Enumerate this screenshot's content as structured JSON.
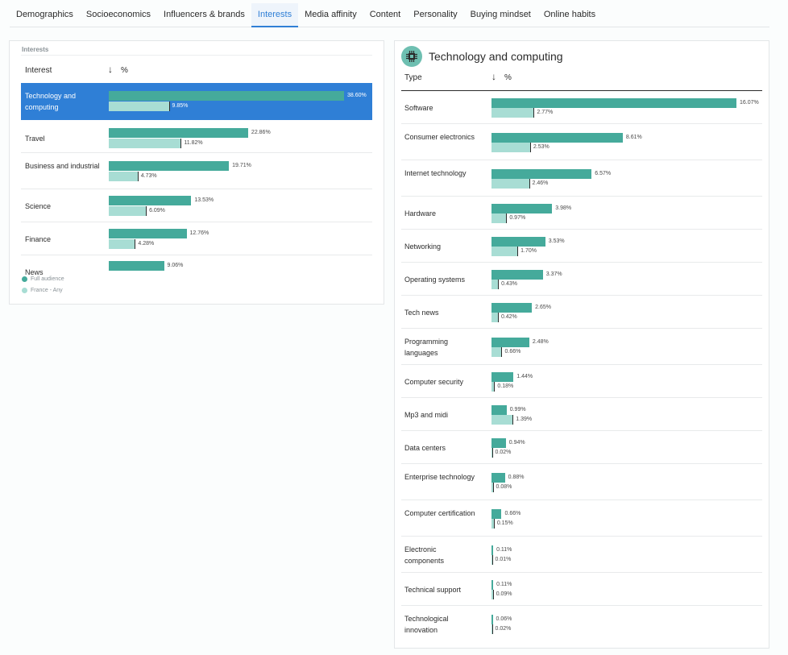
{
  "tabs": [
    {
      "label": "Demographics"
    },
    {
      "label": "Socioeconomics"
    },
    {
      "label": "Influencers & brands"
    },
    {
      "label": "Interests",
      "active": true
    },
    {
      "label": "Media affinity"
    },
    {
      "label": "Content"
    },
    {
      "label": "Personality"
    },
    {
      "label": "Buying mindset"
    },
    {
      "label": "Online habits"
    }
  ],
  "left": {
    "caption": "Interests",
    "col_label": "Interest",
    "col_pct": "%",
    "rows": [
      {
        "label": "Technology and computing",
        "a": 38.6,
        "a_text": "38.60%",
        "b": 9.85,
        "b_text": "9.85%",
        "selected": true
      },
      {
        "label": "Travel",
        "a": 22.86,
        "a_text": "22.86%",
        "b": 11.82,
        "b_text": "11.82%"
      },
      {
        "label": "Business and industrial",
        "a": 19.71,
        "a_text": "19.71%",
        "b": 4.73,
        "b_text": "4.73%"
      },
      {
        "label": "Science",
        "a": 13.53,
        "a_text": "13.53%",
        "b": 6.09,
        "b_text": "6.09%"
      },
      {
        "label": "Finance",
        "a": 12.76,
        "a_text": "12.76%",
        "b": 4.28,
        "b_text": "4.28%"
      },
      {
        "label": "News",
        "a": 9.06,
        "a_text": "9.06%"
      }
    ],
    "legend": [
      {
        "label": "Full audience",
        "color": "#45aa9b"
      },
      {
        "label": "France - Any",
        "color": "#a8ddd4"
      }
    ]
  },
  "right": {
    "title": "Technology and computing",
    "icon": "circuit-chip-icon",
    "col_label": "Type",
    "col_pct": "%",
    "rows": [
      {
        "label": "Software",
        "a": 16.07,
        "a_text": "16.07%",
        "b": 2.77,
        "b_text": "2.77%"
      },
      {
        "label": "Consumer electronics",
        "a": 8.61,
        "a_text": "8.61%",
        "b": 2.53,
        "b_text": "2.53%"
      },
      {
        "label": "Internet technology",
        "a": 6.57,
        "a_text": "6.57%",
        "b": 2.46,
        "b_text": "2.46%"
      },
      {
        "label": "Hardware",
        "a": 3.98,
        "a_text": "3.98%",
        "b": 0.97,
        "b_text": "0.97%"
      },
      {
        "label": "Networking",
        "a": 3.53,
        "a_text": "3.53%",
        "b": 1.7,
        "b_text": "1.70%"
      },
      {
        "label": "Operating systems",
        "a": 3.37,
        "a_text": "3.37%",
        "b": 0.43,
        "b_text": "0.43%"
      },
      {
        "label": "Tech news",
        "a": 2.65,
        "a_text": "2.65%",
        "b": 0.42,
        "b_text": "0.42%"
      },
      {
        "label": "Programming languages",
        "a": 2.48,
        "a_text": "2.48%",
        "b": 0.66,
        "b_text": "0.66%"
      },
      {
        "label": "Computer security",
        "a": 1.44,
        "a_text": "1.44%",
        "b": 0.18,
        "b_text": "0.18%"
      },
      {
        "label": "Mp3 and midi",
        "a": 0.99,
        "a_text": "0.99%",
        "b": 1.39,
        "b_text": "1.39%"
      },
      {
        "label": "Data centers",
        "a": 0.94,
        "a_text": "0.94%",
        "b": 0.02,
        "b_text": "0.02%"
      },
      {
        "label": "Enterprise technology",
        "a": 0.88,
        "a_text": "0.88%",
        "b": 0.08,
        "b_text": "0.08%"
      },
      {
        "label": "Computer certification",
        "a": 0.66,
        "a_text": "0.66%",
        "b": 0.15,
        "b_text": "0.15%"
      },
      {
        "label": "Electronic components",
        "a": 0.11,
        "a_text": "0.11%",
        "b": 0.01,
        "b_text": "0.01%"
      },
      {
        "label": "Technical support",
        "a": 0.11,
        "a_text": "0.11%",
        "b": 0.09,
        "b_text": "0.09%"
      },
      {
        "label": "Technological innovation",
        "a": 0.06,
        "a_text": "0.06%",
        "b": 0.02,
        "b_text": "0.02%"
      }
    ]
  }
}
